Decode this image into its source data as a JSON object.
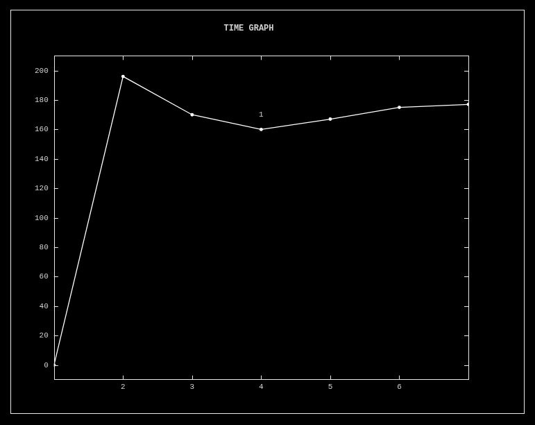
{
  "chart_data": {
    "type": "line",
    "title": "TIME GRAPH",
    "x": [
      1,
      2,
      3,
      4,
      5,
      6,
      7
    ],
    "values": [
      0,
      196,
      170,
      160,
      167,
      175,
      177
    ],
    "color": "#ffffff",
    "marker": "circle",
    "xlim": [
      1,
      7
    ],
    "xticks": [
      2,
      3,
      4,
      5,
      6
    ],
    "ylim": [
      -10,
      210
    ],
    "yticks": [
      0,
      20,
      40,
      60,
      80,
      100,
      120,
      140,
      160,
      180,
      200
    ],
    "grid": false,
    "annotations": [
      {
        "x": 4,
        "y": 170,
        "text": "1"
      }
    ]
  }
}
